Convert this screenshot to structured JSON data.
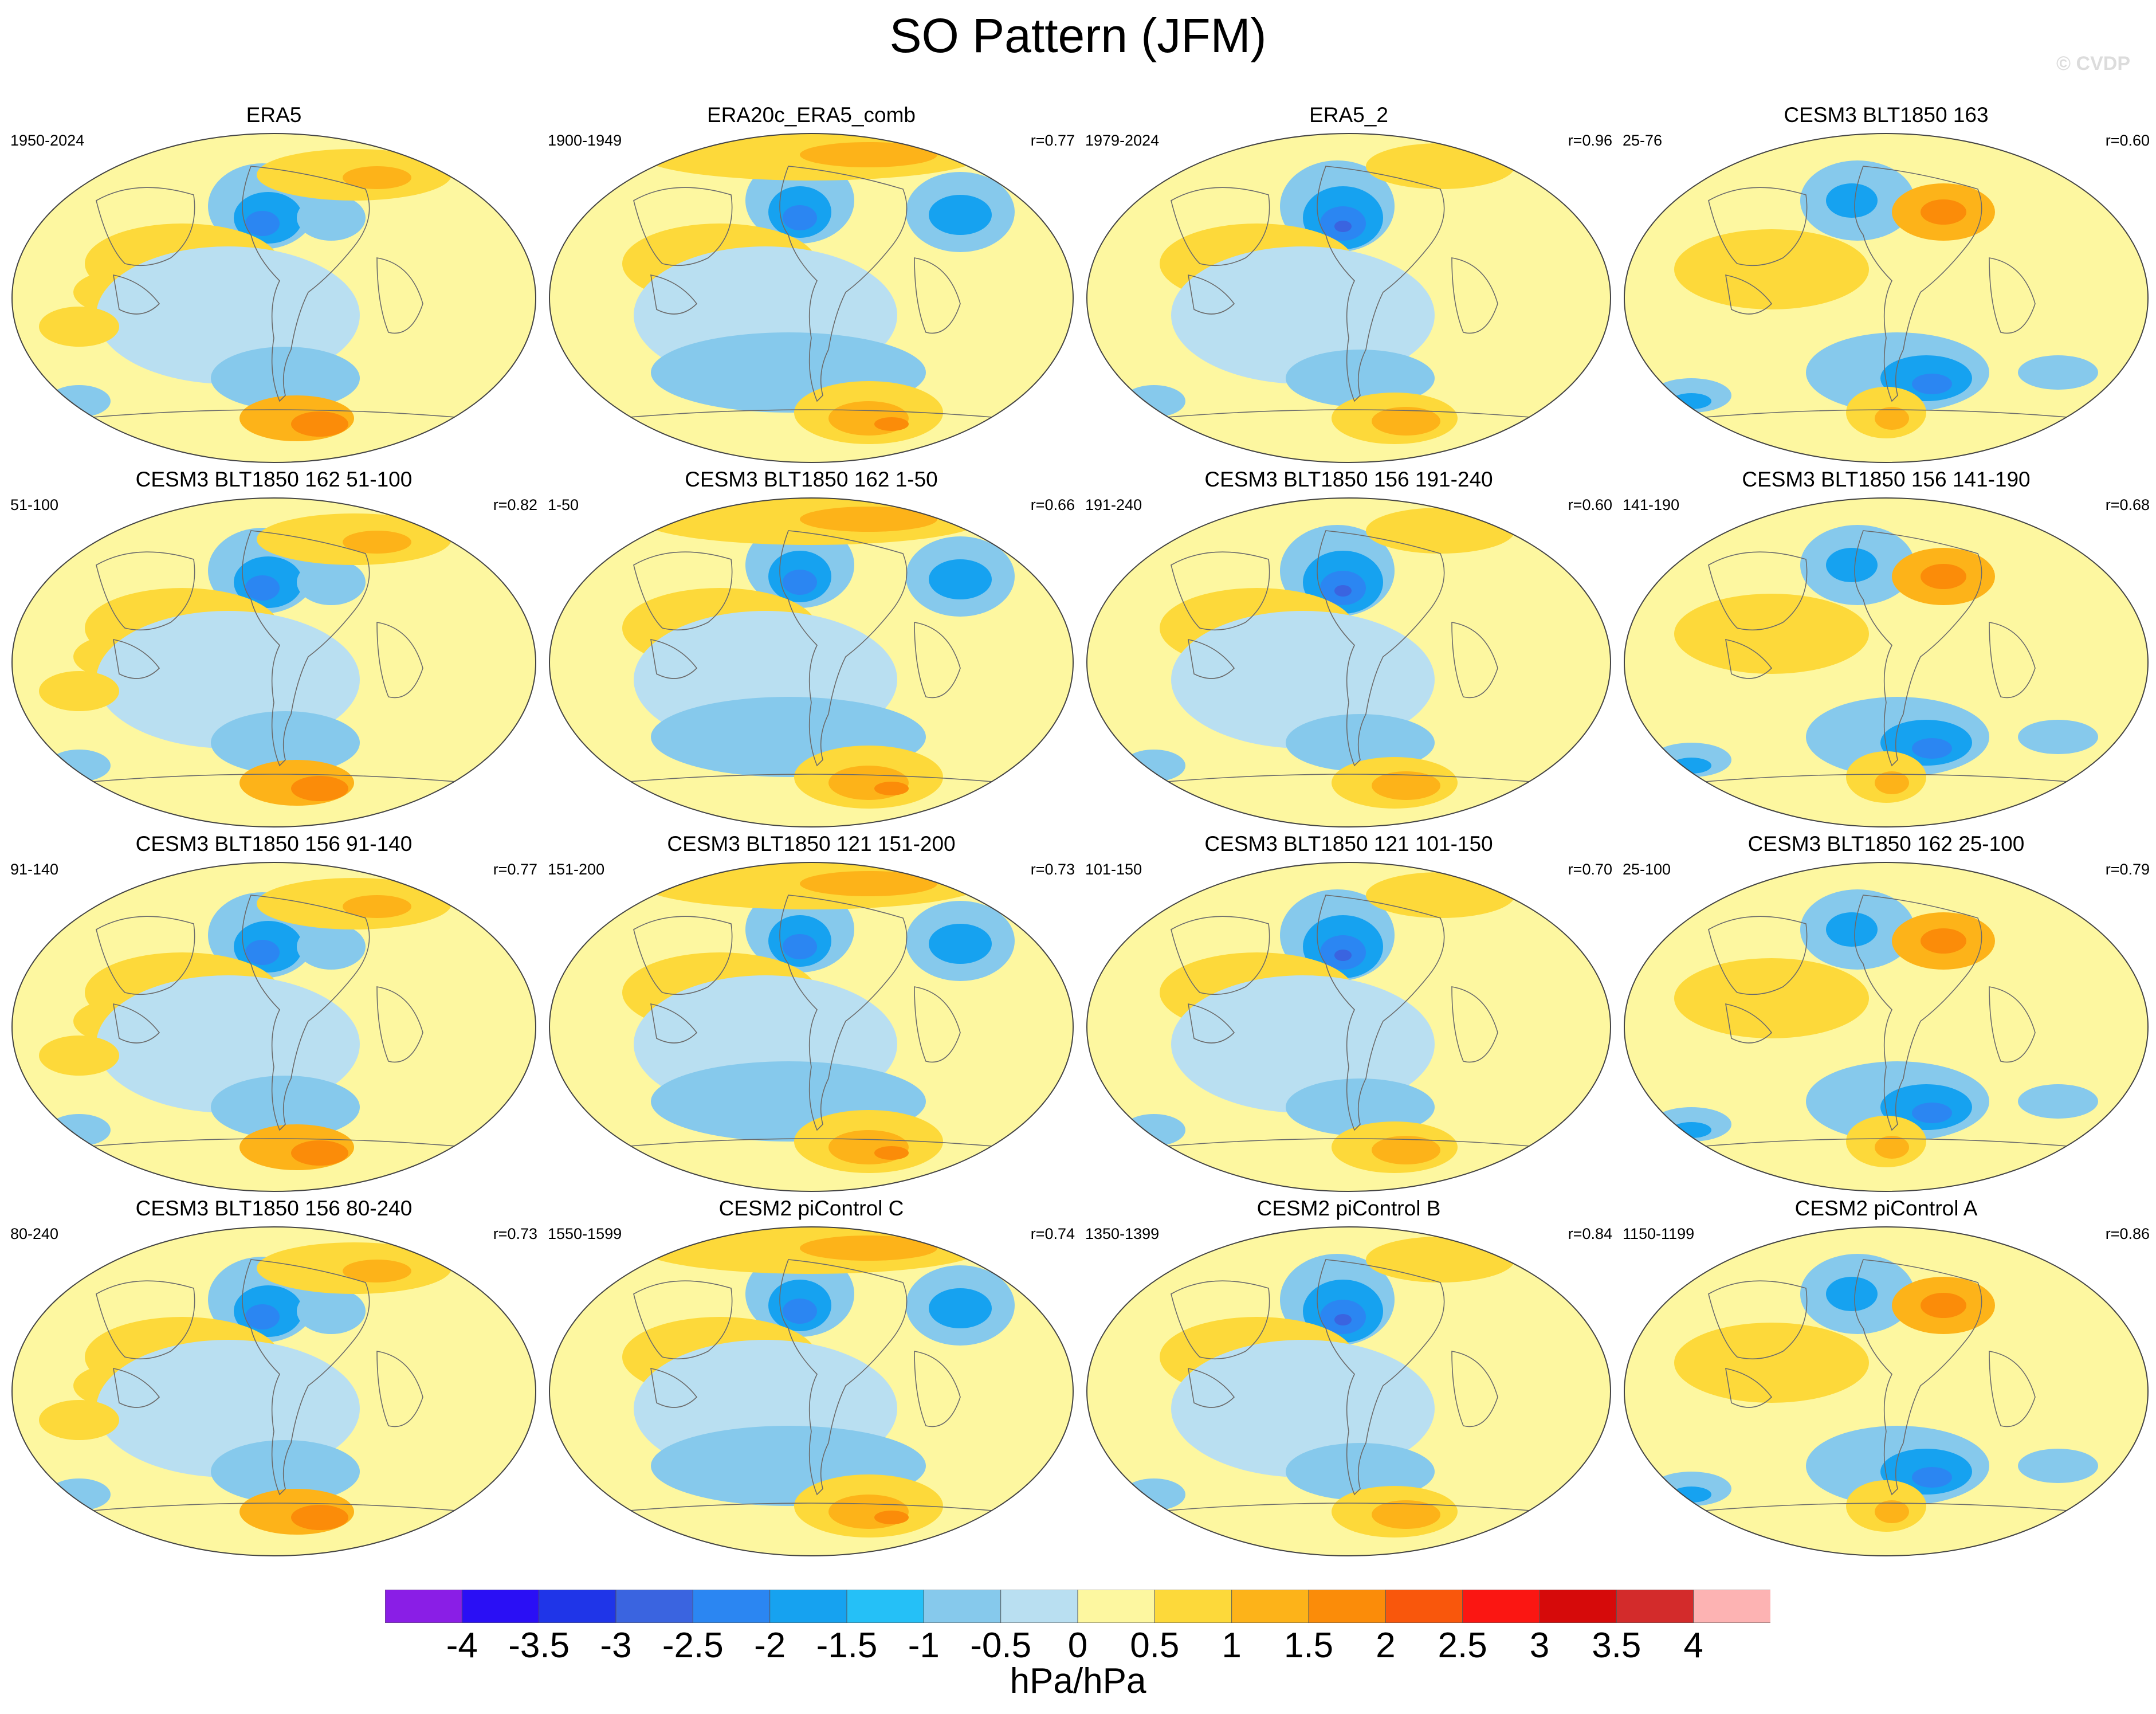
{
  "title": "SO Pattern (JFM)",
  "copyright": "© CVDP",
  "colorbar": {
    "labels": [
      "-4",
      "-3.5",
      "-3",
      "-2.5",
      "-2",
      "-1.5",
      "-1",
      "-0.5",
      "0",
      "0.5",
      "1",
      "1.5",
      "2",
      "2.5",
      "3",
      "3.5",
      "4"
    ],
    "colors": [
      "#8a1ee6",
      "#2a0ff5",
      "#1f35e8",
      "#3a64e0",
      "#2b86f2",
      "#16a2f0",
      "#25c0f7",
      "#86c9ec",
      "#b9dff1",
      "#fdf7a0",
      "#fdd93a",
      "#fdb319",
      "#fb8c09",
      "#f9570c",
      "#fb1612",
      "#d60a0a",
      "#d32b2b",
      "#fdb3b3"
    ],
    "units": "hPa/hPa"
  },
  "panels": [
    {
      "title": "ERA5",
      "period": "1950-2024",
      "corr": "",
      "style": 0
    },
    {
      "title": "ERA20c_ERA5_comb",
      "period": "1900-1949",
      "corr": "r=0.77",
      "style": 1
    },
    {
      "title": "ERA5_2",
      "period": "1979-2024",
      "corr": "r=0.96",
      "style": 2
    },
    {
      "title": "CESM3 BLT1850 163",
      "period": "25-76",
      "corr": "r=0.60",
      "style": 3
    },
    {
      "title": "CESM3 BLT1850 162 51-100",
      "period": "51-100",
      "corr": "r=0.82",
      "style": 0
    },
    {
      "title": "CESM3 BLT1850 162 1-50",
      "period": "1-50",
      "corr": "r=0.66",
      "style": 1
    },
    {
      "title": "CESM3 BLT1850 156 191-240",
      "period": "191-240",
      "corr": "r=0.60",
      "style": 2
    },
    {
      "title": "CESM3 BLT1850 156 141-190",
      "period": "141-190",
      "corr": "r=0.68",
      "style": 3
    },
    {
      "title": "CESM3 BLT1850 156 91-140",
      "period": "91-140",
      "corr": "r=0.77",
      "style": 0
    },
    {
      "title": "CESM3 BLT1850 121 151-200",
      "period": "151-200",
      "corr": "r=0.73",
      "style": 1
    },
    {
      "title": "CESM3 BLT1850 121 101-150",
      "period": "101-150",
      "corr": "r=0.70",
      "style": 2
    },
    {
      "title": "CESM3 BLT1850 162 25-100",
      "period": "25-100",
      "corr": "r=0.79",
      "style": 3
    },
    {
      "title": "CESM3 BLT1850 156 80-240",
      "period": "80-240",
      "corr": "r=0.73",
      "style": 0
    },
    {
      "title": "CESM2 piControl C",
      "period": "1550-1599",
      "corr": "r=0.74",
      "style": 1
    },
    {
      "title": "CESM2 piControl B",
      "period": "1350-1399",
      "corr": "r=0.84",
      "style": 2
    },
    {
      "title": "CESM2 piControl A",
      "period": "1150-1199",
      "corr": "r=0.86",
      "style": 3
    }
  ]
}
